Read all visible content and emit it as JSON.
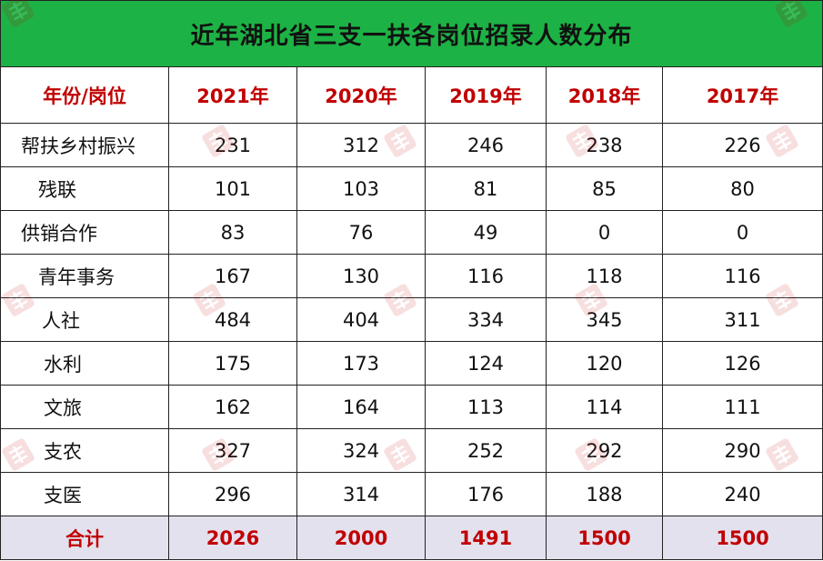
{
  "table": {
    "title": "近年湖北省三支一扶各岗位招录人数分布",
    "header": [
      "年份/岗位",
      "2021年",
      "2020年",
      "2019年",
      "2018年",
      "2017年"
    ],
    "rows": [
      {
        "label": "帮扶乡村振兴",
        "values": [
          "231",
          "312",
          "246",
          "238",
          "226"
        ]
      },
      {
        "label": "残联",
        "values": [
          "101",
          "103",
          "81",
          "85",
          "80"
        ]
      },
      {
        "label": "供销合作",
        "values": [
          "83",
          "76",
          "49",
          "0",
          "0"
        ]
      },
      {
        "label": "青年事务",
        "values": [
          "167",
          "130",
          "116",
          "118",
          "116"
        ]
      },
      {
        "label": "人社",
        "values": [
          "484",
          "404",
          "334",
          "345",
          "311"
        ]
      },
      {
        "label": "水利",
        "values": [
          "175",
          "173",
          "124",
          "120",
          "126"
        ]
      },
      {
        "label": "文旅",
        "values": [
          "162",
          "164",
          "113",
          "114",
          "111"
        ]
      },
      {
        "label": "支农",
        "values": [
          "327",
          "324",
          "252",
          "292",
          "290"
        ]
      },
      {
        "label": "支医",
        "values": [
          "296",
          "314",
          "176",
          "188",
          "240"
        ]
      }
    ],
    "total": {
      "label": "合计",
      "values": [
        "2026",
        "2000",
        "1491",
        "1500",
        "1500"
      ]
    }
  },
  "colors": {
    "title_bg": "#1db245",
    "header_text": "#c00000",
    "total_bg": "#e4e1ef",
    "grid": "#222222",
    "watermark": "#c00000"
  },
  "watermark": {
    "icon": "huatu-logo-icon",
    "text": "华图教育"
  }
}
